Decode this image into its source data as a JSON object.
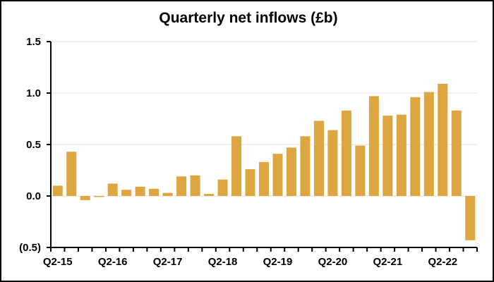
{
  "chart_data": {
    "type": "bar",
    "title": "Quarterly net inflows (£b)",
    "xlabel": "",
    "ylabel": "",
    "ylim": [
      -0.5,
      1.5
    ],
    "y_ticks": [
      {
        "value": 1.5,
        "label": "1.5"
      },
      {
        "value": 1.0,
        "label": "1.0"
      },
      {
        "value": 0.5,
        "label": "0.5"
      },
      {
        "value": 0.0,
        "label": "0.0"
      },
      {
        "value": -0.5,
        "label": "(0.5)"
      }
    ],
    "grid": "horizontal",
    "bar_color": "#DDA640",
    "categories": [
      "Q2-15",
      "Q3-15",
      "Q4-15",
      "Q1-16",
      "Q2-16",
      "Q3-16",
      "Q4-16",
      "Q1-17",
      "Q2-17",
      "Q3-17",
      "Q4-17",
      "Q1-18",
      "Q2-18",
      "Q3-18",
      "Q4-18",
      "Q1-19",
      "Q2-19",
      "Q3-19",
      "Q4-19",
      "Q1-20",
      "Q2-20",
      "Q3-20",
      "Q4-20",
      "Q1-21",
      "Q2-21",
      "Q3-21",
      "Q4-21",
      "Q1-22",
      "Q2-22",
      "Q3-22",
      "Q4-22"
    ],
    "shown_x_labels": [
      "Q2-15",
      "Q2-16",
      "Q2-17",
      "Q2-18",
      "Q2-19",
      "Q2-20",
      "Q2-21",
      "Q2-22"
    ],
    "values": [
      0.1,
      0.43,
      -0.04,
      -0.01,
      0.12,
      0.06,
      0.09,
      0.07,
      0.03,
      0.19,
      0.2,
      0.02,
      0.16,
      0.58,
      0.26,
      0.33,
      0.41,
      0.47,
      0.58,
      0.73,
      0.64,
      0.83,
      0.49,
      0.97,
      0.78,
      0.79,
      0.96,
      1.01,
      1.09,
      0.83,
      -0.43
    ]
  }
}
